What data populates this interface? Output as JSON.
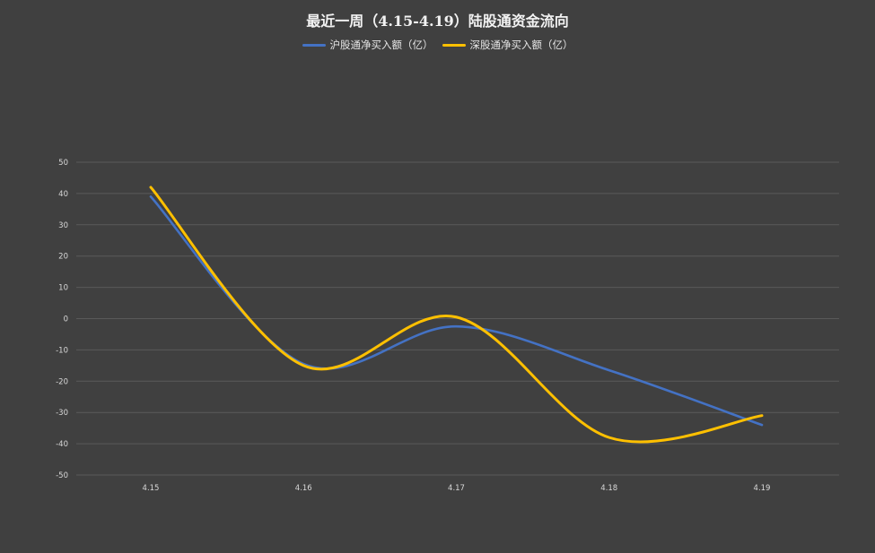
{
  "chart_data": {
    "type": "line",
    "title": "最近一周（4.15-4.19）陆股通资金流向",
    "categories": [
      "4.15",
      "4.16",
      "4.17",
      "4.18",
      "4.19"
    ],
    "series": [
      {
        "name": "沪股通净买入额（亿）",
        "color": "#4472C4",
        "values": [
          39,
          -14.5,
          -2.5,
          -16.5,
          -34
        ]
      },
      {
        "name": "深股通净买入额（亿）",
        "color": "#FFC000",
        "values": [
          42,
          -15,
          0.5,
          -38,
          -31
        ]
      }
    ],
    "ylim": [
      -50,
      50
    ],
    "yticks": [
      "50",
      "40",
      "30",
      "20",
      "10",
      "0",
      "-10",
      "-20",
      "-30",
      "-40",
      "-50"
    ],
    "grid": true,
    "legend": "top"
  }
}
